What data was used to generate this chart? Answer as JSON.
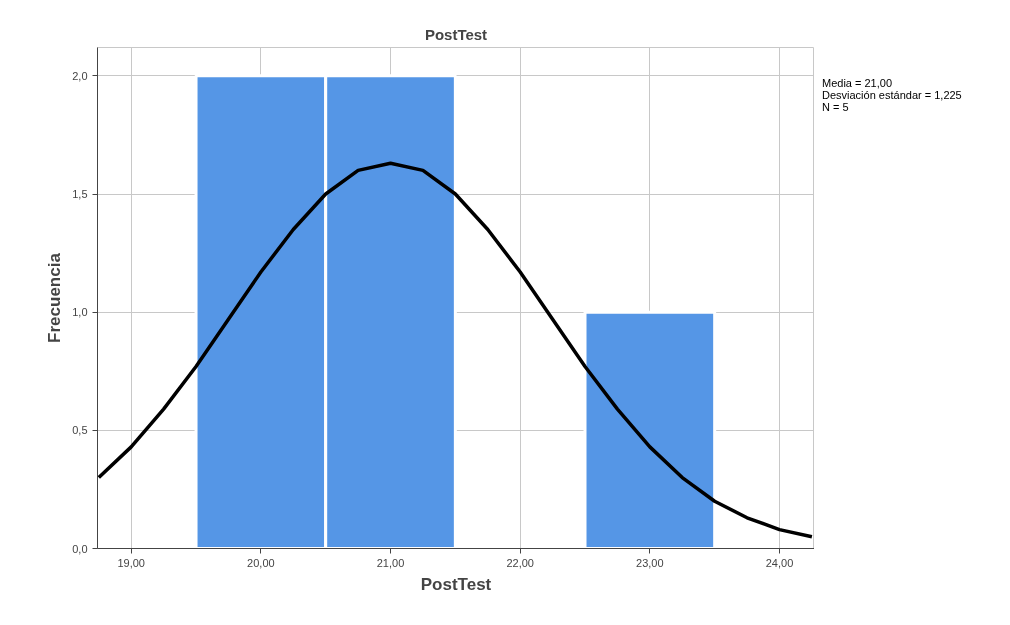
{
  "chart_data": {
    "type": "histogram",
    "title": "PostTest",
    "xlabel": "PostTest",
    "ylabel": "Frecuencia",
    "series": [
      {
        "bins": [
          19.5,
          20.5,
          21.5,
          22.5,
          23.5
        ],
        "values": [
          2,
          2,
          0,
          1
        ],
        "color": "#5596e6"
      },
      {
        "type": "line",
        "color": "#000000",
        "x": [
          18.75,
          19.0,
          19.25,
          19.5,
          19.75,
          20.0,
          20.25,
          20.5,
          20.75,
          21.0,
          21.25,
          21.5,
          21.75,
          22.0,
          22.25,
          22.5,
          22.75,
          23.0,
          23.25,
          23.5,
          23.75,
          24.0,
          24.25
        ],
        "values": [
          0.3,
          0.43,
          0.59,
          0.77,
          0.97,
          1.17,
          1.35,
          1.5,
          1.6,
          1.63,
          1.6,
          1.5,
          1.35,
          1.17,
          0.97,
          0.77,
          0.59,
          0.43,
          0.3,
          0.2,
          0.13,
          0.08,
          0.05
        ]
      }
    ],
    "xlim": [
      18.74,
      24.27
    ],
    "ylim": [
      0,
      2.12
    ],
    "xticks": [
      {
        "value": 19,
        "label": "19,00"
      },
      {
        "value": 20,
        "label": "20,00"
      },
      {
        "value": 21,
        "label": "21,00"
      },
      {
        "value": 22,
        "label": "22,00"
      },
      {
        "value": 23,
        "label": "23,00"
      },
      {
        "value": 24,
        "label": "24,00"
      }
    ],
    "yticks": [
      {
        "value": 0,
        "label": "0,0"
      },
      {
        "value": 0.5,
        "label": "0,5"
      },
      {
        "value": 1,
        "label": "1,0"
      },
      {
        "value": 1.5,
        "label": "1,5"
      },
      {
        "value": 2,
        "label": "2,0"
      }
    ],
    "grid": true,
    "annotations": [
      "Media = 21,00",
      "Desviación estándar = 1,225",
      "N = 5"
    ]
  }
}
